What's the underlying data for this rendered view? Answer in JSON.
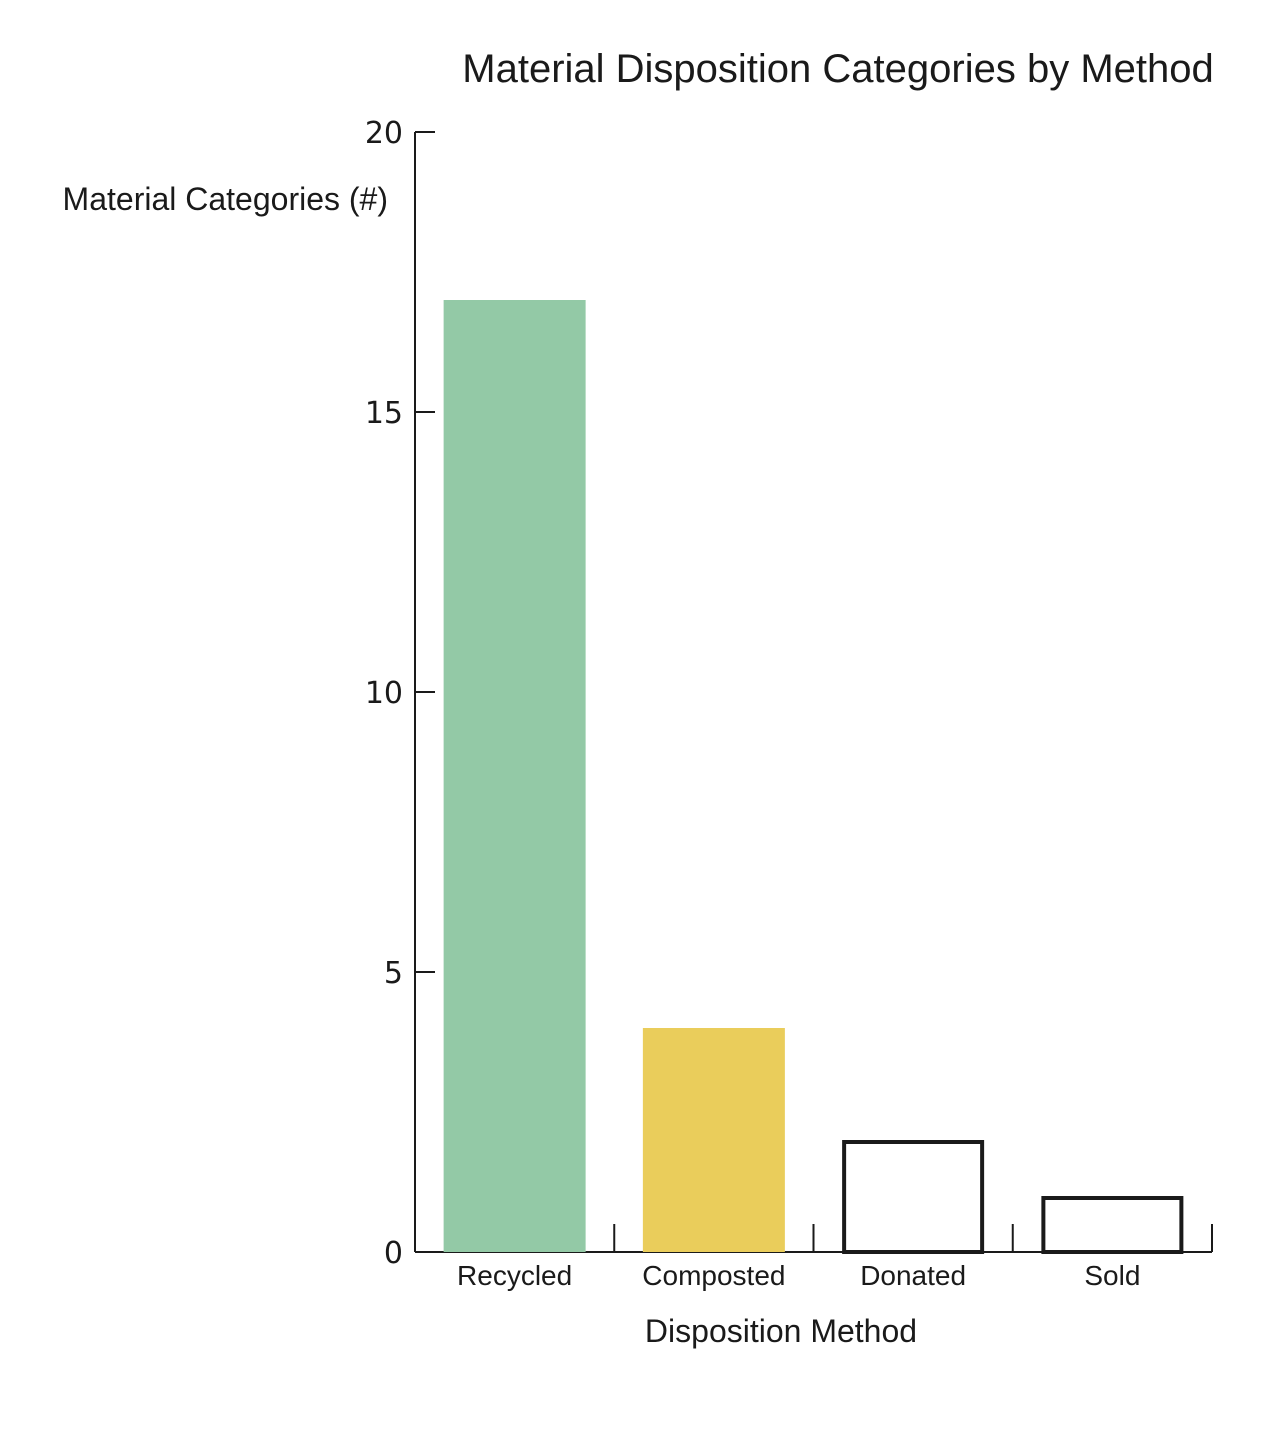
{
  "chart_data": {
    "type": "bar",
    "title": "Material Disposition Categories by Method",
    "xlabel": "Disposition Method",
    "ylabel": "Material Categories (#)",
    "categories": [
      "Recycled",
      "Composted",
      "Donated",
      "Sold"
    ],
    "values": [
      17,
      4,
      2,
      1
    ],
    "ylim": [
      0,
      20
    ],
    "yticks": [
      "0",
      "5",
      "10",
      "15",
      "20"
    ],
    "bar_styles": [
      {
        "fill": "#93c9a6",
        "stroke": "none"
      },
      {
        "fill": "#eacd5b",
        "stroke": "none"
      },
      {
        "fill": "#ffffff",
        "stroke": "#1a1a1a"
      },
      {
        "fill": "#ffffff",
        "stroke": "#1a1a1a"
      }
    ],
    "grid": false,
    "legend": "none"
  }
}
